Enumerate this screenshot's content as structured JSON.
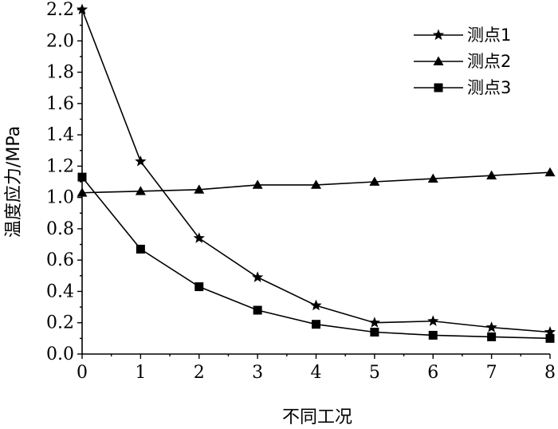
{
  "chart_data": {
    "type": "line",
    "title": "",
    "xlabel": "不同工况",
    "ylabel": "温度应力/MPa",
    "x": [
      0,
      1,
      2,
      3,
      4,
      5,
      6,
      7,
      8
    ],
    "xlim": [
      0,
      8
    ],
    "ylim": [
      0,
      2.2
    ],
    "xticks": [
      "0",
      "1",
      "2",
      "3",
      "4",
      "5",
      "6",
      "7",
      "8"
    ],
    "yticks": [
      "0.0",
      "0.2",
      "0.4",
      "0.6",
      "0.8",
      "1.0",
      "1.2",
      "1.4",
      "1.6",
      "1.8",
      "2.0",
      "2.2"
    ],
    "grid": false,
    "legend_position": "top-right",
    "series": [
      {
        "name": "测点1",
        "marker": "star",
        "values": [
          2.2,
          1.23,
          0.74,
          0.49,
          0.31,
          0.2,
          0.21,
          0.17,
          0.14
        ]
      },
      {
        "name": "测点2",
        "marker": "triangle",
        "values": [
          1.03,
          1.04,
          1.05,
          1.08,
          1.08,
          1.1,
          1.12,
          1.14,
          1.16
        ]
      },
      {
        "name": "测点3",
        "marker": "square",
        "values": [
          1.13,
          0.67,
          0.43,
          0.28,
          0.19,
          0.14,
          0.12,
          0.11,
          0.1
        ]
      }
    ]
  }
}
